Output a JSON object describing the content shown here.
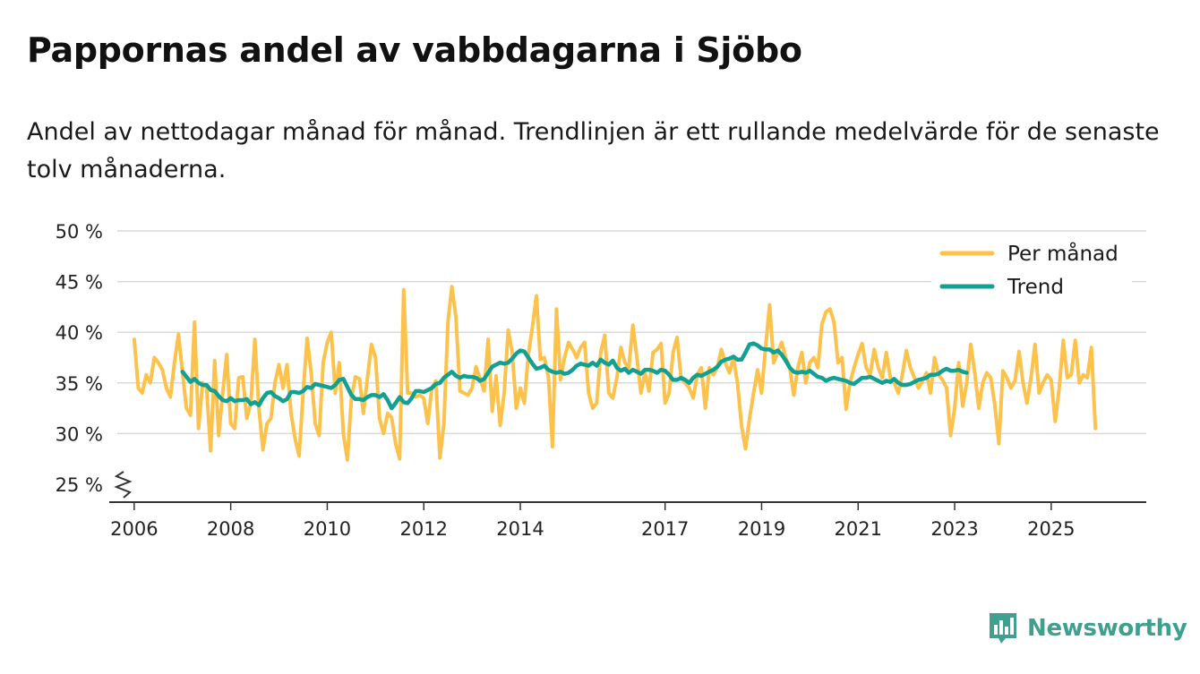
{
  "title": "Pappornas andel av vabbdagarna i Sjöbo",
  "subtitle": "Andel av nettodagar månad för månad. Trendlinjen är ett rullande medelvärde för de senaste tolv månaderna.",
  "brand": {
    "name": "Newsworthy",
    "color": "#3fa08f"
  },
  "colors": {
    "monthly": "#fdc24b",
    "trend": "#11a092",
    "grid": "#d9d9d9",
    "axis": "#333333"
  },
  "chart_data": {
    "type": "line",
    "title": "Pappornas andel av vabbdagarna i Sjöbo",
    "xlabel": "",
    "ylabel": "",
    "ylim": [
      25,
      50
    ],
    "y_ticks": [
      25,
      30,
      35,
      40,
      45,
      50
    ],
    "y_tick_labels": [
      "25 %",
      "30 %",
      "35 %",
      "40 %",
      "45 %",
      "50 %"
    ],
    "y_axis_broken": true,
    "x_ticks": [
      2006,
      2008,
      2010,
      2012,
      2014,
      2017,
      2019,
      2021,
      2023,
      2025
    ],
    "x_tick_labels": [
      "2006",
      "2008",
      "2010",
      "2012",
      "2014",
      "2017",
      "2019",
      "2021",
      "2023",
      "2025"
    ],
    "x_start": 2006.0,
    "month_step": 0.08333,
    "legend_position": "top-right",
    "series": [
      {
        "name": "Per månad",
        "values": [
          39.3,
          34.5,
          34.0,
          35.8,
          35.0,
          37.5,
          37.0,
          36.3,
          34.5,
          33.6,
          37.0,
          39.8,
          36.0,
          32.5,
          31.8,
          41.0,
          30.5,
          35.0,
          34.5,
          28.3,
          37.2,
          29.8,
          34.0,
          37.8,
          31.0,
          30.5,
          35.5,
          35.6,
          31.5,
          33.0,
          39.3,
          32.5,
          28.4,
          31.0,
          31.5,
          35.0,
          36.8,
          34.5,
          36.8,
          32.0,
          29.5,
          27.8,
          34.0,
          39.4,
          36.0,
          31.0,
          29.8,
          37.0,
          39.0,
          40.0,
          34.0,
          37.0,
          30.0,
          27.4,
          33.5,
          35.6,
          35.4,
          32.0,
          35.5,
          38.8,
          37.5,
          31.5,
          30.0,
          32.0,
          31.6,
          29.0,
          27.5,
          44.2,
          34.0,
          34.0,
          33.6,
          33.8,
          33.5,
          31.0,
          34.5,
          35.2,
          27.6,
          31.0,
          41.0,
          44.5,
          41.5,
          34.2,
          34.0,
          33.8,
          34.5,
          36.6,
          35.4,
          34.2,
          39.3,
          32.2,
          35.7,
          30.8,
          34.0,
          40.2,
          38.0,
          32.5,
          34.5,
          33.0,
          37.8,
          40.5,
          43.6,
          37.3,
          37.5,
          35.6,
          28.7,
          42.3,
          35.3,
          37.5,
          39.0,
          38.3,
          37.5,
          38.5,
          39.0,
          34.0,
          32.5,
          33.0,
          38.0,
          39.7,
          34.0,
          33.5,
          35.5,
          38.5,
          37.0,
          36.5,
          40.7,
          37.5,
          34.0,
          36.0,
          34.2,
          38.0,
          38.3,
          38.9,
          33.0,
          34.0,
          38.0,
          39.5,
          35.4,
          35.0,
          34.5,
          33.5,
          35.8,
          36.5,
          32.5,
          36.5,
          35.8,
          36.5,
          38.3,
          37.0,
          36.0,
          37.5,
          35.0,
          30.8,
          28.5,
          31.5,
          34.0,
          36.3,
          34.0,
          38.5,
          42.7,
          37.0,
          38.0,
          39.0,
          37.5,
          36.5,
          33.8,
          36.5,
          38.0,
          35.0,
          37.0,
          37.5,
          36.5,
          40.8,
          42.0,
          42.3,
          41.0,
          37.0,
          37.5,
          32.4,
          35.0,
          36.5,
          37.8,
          38.9,
          36.5,
          35.8,
          38.3,
          36.5,
          35.5,
          38.0,
          35.5,
          35.0,
          34.0,
          35.8,
          38.2,
          36.5,
          35.5,
          34.5,
          35.2,
          36.0,
          34.0,
          37.5,
          35.8,
          35.3,
          34.5,
          29.8,
          32.5,
          37.0,
          32.7,
          35.0,
          38.8,
          36.0,
          32.5,
          35.0,
          36.0,
          35.5,
          32.8,
          29.0,
          36.2,
          35.5,
          34.5,
          35.2,
          38.1,
          35.0,
          33.0,
          35.5,
          38.8,
          34.0,
          35.0,
          35.8,
          35.3,
          31.2,
          34.5,
          39.2,
          35.5,
          35.8,
          39.2,
          35.0,
          35.8,
          35.5,
          38.5,
          30.5
        ]
      },
      {
        "name": "Trend",
        "start_index": 12,
        "values": [
          36.1,
          35.6,
          35.1,
          35.4,
          35.0,
          34.8,
          34.8,
          34.3,
          34.2,
          33.7,
          33.3,
          33.2,
          33.5,
          33.2,
          33.3,
          33.3,
          33.4,
          32.9,
          33.1,
          32.8,
          33.5,
          34.0,
          34.1,
          33.7,
          33.5,
          33.2,
          33.4,
          34.1,
          34.1,
          34.0,
          34.2,
          34.6,
          34.5,
          34.9,
          34.8,
          34.7,
          34.6,
          34.5,
          34.8,
          35.3,
          35.4,
          34.6,
          33.8,
          33.4,
          33.4,
          33.3,
          33.6,
          33.8,
          33.8,
          33.6,
          33.9,
          33.3,
          32.5,
          33.0,
          33.6,
          33.1,
          33.0,
          33.5,
          34.2,
          34.2,
          34.1,
          34.3,
          34.5,
          34.9,
          35.0,
          35.5,
          35.8,
          36.1,
          35.7,
          35.5,
          35.7,
          35.6,
          35.6,
          35.5,
          35.2,
          35.4,
          36.0,
          36.6,
          36.8,
          37.0,
          36.9,
          37.0,
          37.4,
          37.9,
          38.2,
          38.1,
          37.5,
          36.9,
          36.4,
          36.5,
          36.7,
          36.3,
          36.1,
          36.0,
          36.1,
          35.9,
          36.0,
          36.3,
          36.7,
          36.9,
          36.8,
          36.7,
          37.0,
          36.7,
          37.3,
          37.0,
          36.8,
          37.2,
          36.5,
          36.2,
          36.4,
          36.0,
          36.3,
          36.1,
          35.9,
          36.3,
          36.3,
          36.2,
          36.0,
          36.3,
          36.2,
          35.8,
          35.3,
          35.3,
          35.5,
          35.3,
          35.0,
          35.5,
          35.8,
          35.7,
          35.9,
          36.1,
          36.3,
          36.6,
          37.1,
          37.3,
          37.4,
          37.6,
          37.3,
          37.3,
          38.0,
          38.8,
          38.9,
          38.7,
          38.4,
          38.3,
          38.3,
          38.0,
          38.2,
          37.8,
          37.2,
          36.5,
          36.1,
          36.0,
          36.1,
          36.0,
          36.2,
          35.9,
          35.6,
          35.5,
          35.2,
          35.4,
          35.5,
          35.4,
          35.3,
          35.2,
          35.0,
          34.9,
          35.2,
          35.5,
          35.5,
          35.6,
          35.4,
          35.2,
          35.0,
          35.2,
          35.1,
          35.4,
          35.0,
          34.8,
          34.8,
          34.9,
          35.1,
          35.3,
          35.4,
          35.5,
          35.8,
          35.8,
          35.9,
          36.2,
          36.4,
          36.2,
          36.2,
          36.3,
          36.1,
          36.0
        ]
      }
    ]
  }
}
